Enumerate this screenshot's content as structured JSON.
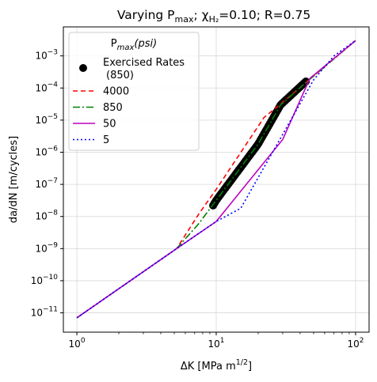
{
  "chart_data": {
    "type": "line",
    "title": "Varying P",
    "title_sub": "max",
    "title_rest": "; χ",
    "title_sub2": "H₂",
    "title_end": "=0.10; R=0.75",
    "xlabel": "ΔK [MPa m",
    "xlabel_sup": "1/2",
    "xlabel_end": "]",
    "ylabel": "da/dN [m/cycles]",
    "xscale": "log",
    "yscale": "log",
    "xlim": [
      0.8,
      125
    ],
    "ylim": [
      2.5e-12,
      0.008
    ],
    "grid": true,
    "legend_position": "upper-left",
    "legend_title": "P",
    "legend_title_sub": "max",
    "legend_title_end": "(psi)",
    "x_ticks": [
      {
        "value": 1,
        "base": "10",
        "exp": "0"
      },
      {
        "value": 10,
        "base": "10",
        "exp": "1"
      },
      {
        "value": 100,
        "base": "10",
        "exp": "2"
      }
    ],
    "y_ticks": [
      {
        "value": 1e-11,
        "base": "10",
        "exp": "−11"
      },
      {
        "value": 1e-10,
        "base": "10",
        "exp": "−10"
      },
      {
        "value": 1e-09,
        "base": "10",
        "exp": "−9"
      },
      {
        "value": 1e-08,
        "base": "10",
        "exp": "−8"
      },
      {
        "value": 1e-07,
        "base": "10",
        "exp": "−7"
      },
      {
        "value": 1e-06,
        "base": "10",
        "exp": "−6"
      },
      {
        "value": 1e-05,
        "base": "10",
        "exp": "−5"
      },
      {
        "value": 0.0001,
        "base": "10",
        "exp": "−4"
      },
      {
        "value": 0.001,
        "base": "10",
        "exp": "−3"
      }
    ],
    "exercised_rates": {
      "name_line1": "Exercised Rates",
      "name_line2": "(850)",
      "color": "#000000",
      "x_start": 9.5,
      "x_end": 44,
      "count": 70,
      "curve": [
        [
          9.5,
          2.2e-08
        ],
        [
          10,
          3.2e-08
        ],
        [
          20,
          1.8e-06
        ],
        [
          29,
          3e-05
        ],
        [
          44,
          0.00016
        ]
      ]
    },
    "series": [
      {
        "name": "4000",
        "color": "#ff0000",
        "dash": "6,4",
        "points": [
          [
            1,
            7e-12
          ],
          [
            5.2,
            1e-09
          ],
          [
            7.5,
            1.2e-08
          ],
          [
            10,
            7e-08
          ],
          [
            22,
            1.2e-05
          ],
          [
            29,
            3.2e-05
          ],
          [
            45,
            0.00016
          ],
          [
            100,
            0.003
          ]
        ]
      },
      {
        "name": "850",
        "color": "#008000",
        "dash": "9,3,2,3",
        "points": [
          [
            1,
            7e-12
          ],
          [
            5.2,
            1e-09
          ],
          [
            7.5,
            6e-09
          ],
          [
            10,
            3.2e-08
          ],
          [
            20,
            1.8e-06
          ],
          [
            29,
            3e-05
          ],
          [
            45,
            0.00016
          ],
          [
            100,
            0.003
          ]
        ]
      },
      {
        "name": "50",
        "color": "#bf00bf",
        "dash": "",
        "points": [
          [
            1,
            7e-12
          ],
          [
            5.2,
            1e-09
          ],
          [
            10,
            7e-09
          ],
          [
            30,
            2.5e-06
          ],
          [
            47,
            0.0002
          ],
          [
            100,
            0.003
          ]
        ]
      },
      {
        "name": "5",
        "color": "#0000ff",
        "dash": "2,3",
        "points": [
          [
            1,
            7e-12
          ],
          [
            5.2,
            1e-09
          ],
          [
            10,
            7e-09
          ],
          [
            15,
            1.8e-08
          ],
          [
            50,
            0.00018
          ],
          [
            70,
            0.001
          ],
          [
            100,
            0.003
          ]
        ]
      }
    ]
  }
}
